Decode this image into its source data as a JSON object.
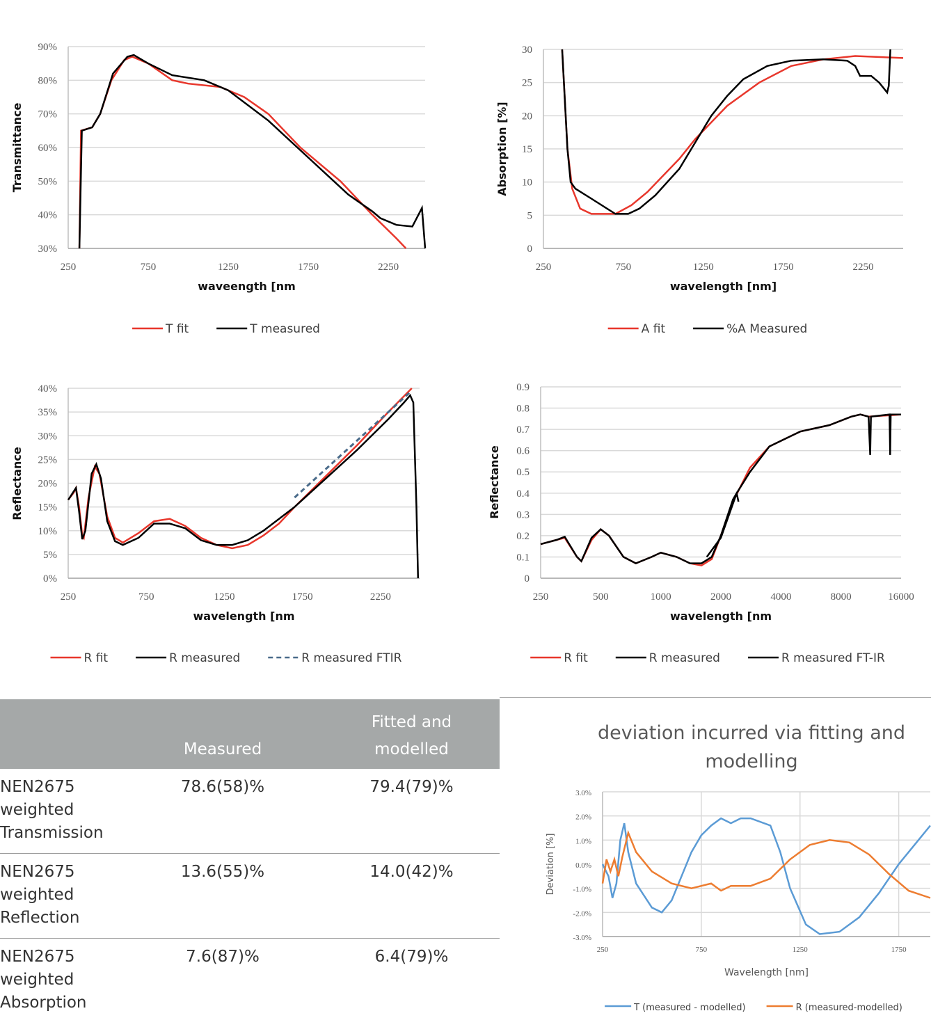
{
  "chart_data": [
    {
      "type": "line",
      "ylabel": "Transmittance",
      "xlabel": "waveength [nm",
      "xlim": [
        250,
        2480
      ],
      "xticks": [
        250,
        750,
        1250,
        1750,
        2250
      ],
      "ylim": [
        30,
        90
      ],
      "yticks": [
        {
          "value": 30,
          "label": "30%"
        },
        {
          "value": 40,
          "label": "40%"
        },
        {
          "value": 50,
          "label": "50%"
        },
        {
          "value": 60,
          "label": "60%"
        },
        {
          "value": 70,
          "label": "70%"
        },
        {
          "value": 80,
          "label": "80%"
        },
        {
          "value": 90,
          "label": "90%"
        }
      ],
      "grid": "y",
      "legend": "bottom",
      "series": [
        {
          "name": "T fit",
          "color": "#e8372c",
          "x": [
            320,
            330,
            400,
            450,
            520,
            600,
            650,
            750,
            900,
            1000,
            1200,
            1350,
            1500,
            1700,
            1950,
            2150,
            2300,
            2360
          ],
          "values": [
            30,
            65,
            66,
            70,
            80,
            86,
            87,
            85,
            80,
            79,
            78,
            75,
            70,
            60,
            50,
            40,
            33,
            30
          ]
        },
        {
          "name": "T measured",
          "color": "#000000",
          "x": [
            320,
            335,
            400,
            450,
            530,
            620,
            660,
            750,
            900,
            1100,
            1250,
            1500,
            1750,
            2000,
            2150,
            2200,
            2300,
            2400,
            2460,
            2480
          ],
          "values": [
            30,
            65,
            66,
            70,
            82,
            87,
            87.5,
            85,
            81.5,
            80,
            77,
            68,
            57,
            46,
            41,
            39,
            37,
            36.5,
            42,
            30
          ]
        }
      ]
    },
    {
      "type": "line",
      "ylabel": "Absorption [%]",
      "xlabel": "wavelength [nm]",
      "xlim": [
        250,
        2500
      ],
      "xticks": [
        250,
        750,
        1250,
        1750,
        2250
      ],
      "ylim": [
        0,
        30
      ],
      "yticks": [
        0,
        5,
        10,
        15,
        20,
        25,
        30
      ],
      "grid": "y",
      "legend": "bottom",
      "series": [
        {
          "name": "A fit",
          "color": "#e8372c",
          "x": [
            367,
            400,
            430,
            480,
            550,
            700,
            800,
            900,
            1000,
            1100,
            1200,
            1400,
            1600,
            1800,
            2000,
            2200,
            2500
          ],
          "values": [
            30,
            15,
            9,
            6,
            5.2,
            5.2,
            6.5,
            8.5,
            11,
            13.5,
            16.5,
            21.5,
            25,
            27.5,
            28.5,
            29,
            28.7
          ]
        },
        {
          "name": "%A Measured",
          "color": "#000000",
          "x": [
            367,
            400,
            420,
            450,
            550,
            700,
            780,
            850,
            950,
            1100,
            1200,
            1300,
            1400,
            1500,
            1650,
            1800,
            2000,
            2150,
            2200,
            2230,
            2300,
            2350,
            2400,
            2410,
            2420
          ],
          "values": [
            30,
            15,
            10,
            9,
            7.5,
            5.2,
            5.2,
            6,
            8,
            12,
            16,
            20,
            23,
            25.5,
            27.5,
            28.3,
            28.5,
            28.3,
            27.5,
            26,
            26,
            25,
            23.5,
            24.5,
            30
          ]
        }
      ]
    },
    {
      "type": "line",
      "ylabel": "Reflectance",
      "xlabel": "wavelength [nm",
      "xlim": [
        250,
        2500
      ],
      "xticks": [
        250,
        750,
        1250,
        1750,
        2250
      ],
      "ylim": [
        0,
        40
      ],
      "yticks": [
        {
          "value": 0,
          "label": "0%"
        },
        {
          "value": 5,
          "label": "5%"
        },
        {
          "value": 10,
          "label": "10%"
        },
        {
          "value": 15,
          "label": "15%"
        },
        {
          "value": 20,
          "label": "20%"
        },
        {
          "value": 25,
          "label": "25%"
        },
        {
          "value": 30,
          "label": "30%"
        },
        {
          "value": 35,
          "label": "35%"
        },
        {
          "value": 40,
          "label": "40%"
        }
      ],
      "grid": "y",
      "legend": "bottom",
      "series": [
        {
          "name": "R fit",
          "color": "#e8372c",
          "style": "solid",
          "x": [
            250,
            285,
            300,
            320,
            340,
            350,
            380,
            420,
            450,
            500,
            550,
            600,
            700,
            800,
            900,
            1000,
            1100,
            1200,
            1300,
            1400,
            1500,
            1600,
            1700,
            1900,
            2100,
            2300,
            2450
          ],
          "values": [
            16.5,
            18,
            19,
            15,
            9,
            8.5,
            17,
            23.5,
            22,
            13,
            8.5,
            7.5,
            9.5,
            12,
            12.5,
            11,
            8.5,
            7,
            6.3,
            7,
            9,
            11.5,
            15,
            21.5,
            28,
            35,
            40
          ]
        },
        {
          "name": "R measured",
          "color": "#000000",
          "style": "solid",
          "x": [
            250,
            300,
            320,
            340,
            360,
            400,
            430,
            460,
            500,
            550,
            600,
            700,
            800,
            900,
            1000,
            1100,
            1200,
            1300,
            1400,
            1500,
            1600,
            1700,
            1900,
            2100,
            2300,
            2400,
            2440,
            2460,
            2480,
            2490
          ],
          "values": [
            16.5,
            19,
            14,
            8.2,
            10,
            22,
            24,
            21,
            12,
            7.8,
            7,
            8.5,
            11.5,
            11.5,
            10.5,
            8,
            7,
            7,
            8,
            10,
            12.5,
            15,
            21,
            27,
            33.5,
            37,
            38.5,
            37,
            15,
            0
          ]
        },
        {
          "name": "R measured FTIR",
          "color": "#4a6b8a",
          "style": "dashed",
          "x": [
            1700,
            2000,
            2200,
            2450
          ],
          "values": [
            17,
            26,
            32,
            39.5
          ]
        }
      ]
    },
    {
      "type": "line",
      "ylabel": "Reflectance",
      "xlabel": "wavelength [nm",
      "xscale": "log",
      "xlim": [
        250,
        16000
      ],
      "xticks": [
        250,
        500,
        1000,
        2000,
        4000,
        8000,
        16000
      ],
      "ylim": [
        0,
        0.9
      ],
      "yticks": [
        0,
        0.1,
        0.2,
        0.3,
        0.4,
        0.5,
        0.6,
        0.7,
        0.8,
        0.9
      ],
      "grid": "y",
      "legend": "bottom",
      "series": [
        {
          "name": "R fit",
          "color": "#e8372c",
          "style": "solid",
          "x": [
            250,
            300,
            330,
            380,
            400,
            450,
            500,
            550,
            650,
            750,
            900,
            1000,
            1200,
            1400,
            1600,
            1800,
            2000,
            2300,
            2800,
            3500,
            5000,
            7000,
            9000,
            10000,
            11000,
            16000
          ],
          "values": [
            0.16,
            0.18,
            0.19,
            0.1,
            0.08,
            0.18,
            0.23,
            0.2,
            0.1,
            0.07,
            0.1,
            0.12,
            0.1,
            0.07,
            0.06,
            0.09,
            0.2,
            0.36,
            0.52,
            0.62,
            0.69,
            0.72,
            0.76,
            0.77,
            0.76,
            0.77
          ]
        },
        {
          "name": "R measured",
          "color": "#000000",
          "style": "solid",
          "x": [
            250,
            300,
            330,
            380,
            400,
            450,
            500,
            550,
            650,
            750,
            900,
            1000,
            1200,
            1400,
            1600,
            1800,
            2000,
            2300,
            2400,
            2450
          ],
          "values": [
            0.16,
            0.18,
            0.195,
            0.1,
            0.08,
            0.19,
            0.23,
            0.2,
            0.1,
            0.07,
            0.1,
            0.12,
            0.1,
            0.07,
            0.07,
            0.1,
            0.2,
            0.37,
            0.4,
            0.36
          ]
        },
        {
          "name": "R measured FT-IR",
          "color": "#000000",
          "style": "solid",
          "x": [
            1700,
            2000,
            2400,
            2800,
            3500,
            5000,
            7000,
            9000,
            10000,
            11000,
            11200,
            11300,
            14000,
            14100,
            14200,
            16000
          ],
          "values": [
            0.1,
            0.19,
            0.4,
            0.5,
            0.62,
            0.69,
            0.72,
            0.76,
            0.77,
            0.76,
            0.58,
            0.76,
            0.77,
            0.58,
            0.77,
            0.77
          ]
        }
      ]
    },
    {
      "type": "line",
      "title": "deviation incurred via fitting and modelling",
      "ylabel": "Deviation [%]",
      "xlabel": "Wavelength [nm]",
      "xlim": [
        250,
        1910
      ],
      "xticks": [
        250,
        750,
        1250,
        1750
      ],
      "ylim": [
        -3,
        3
      ],
      "yticks": [
        {
          "value": -3,
          "label": "-3.0%"
        },
        {
          "value": -2,
          "label": "-2.0%"
        },
        {
          "value": -1,
          "label": "-1.0%"
        },
        {
          "value": 0,
          "label": "0.0%"
        },
        {
          "value": 1,
          "label": "1.0%"
        },
        {
          "value": 2,
          "label": "2.0%"
        },
        {
          "value": 3,
          "label": "3.0%"
        }
      ],
      "grid": "both",
      "legend": "bottom",
      "series": [
        {
          "name": "T (measured - modelled)",
          "color": "#5b9bd5",
          "x": [
            250,
            280,
            300,
            320,
            340,
            360,
            380,
            420,
            500,
            550,
            600,
            650,
            700,
            750,
            800,
            850,
            900,
            950,
            1000,
            1100,
            1150,
            1200,
            1280,
            1350,
            1450,
            1550,
            1650,
            1750,
            1850,
            1910
          ],
          "values": [
            0,
            -0.5,
            -1.4,
            -0.8,
            1,
            1.7,
            0.5,
            -0.8,
            -1.8,
            -2,
            -1.5,
            -0.5,
            0.5,
            1.2,
            1.6,
            1.9,
            1.7,
            1.9,
            1.9,
            1.6,
            0.5,
            -1,
            -2.5,
            -2.9,
            -2.8,
            -2.2,
            -1.2,
            0,
            1,
            1.6
          ]
        },
        {
          "name": "R (measured-modelled)",
          "color": "#ed7d31",
          "x": [
            250,
            270,
            290,
            310,
            330,
            350,
            380,
            420,
            500,
            600,
            700,
            800,
            850,
            900,
            1000,
            1100,
            1200,
            1300,
            1400,
            1500,
            1600,
            1700,
            1800,
            1910
          ],
          "values": [
            -0.8,
            0.2,
            -0.3,
            0.2,
            -0.5,
            0.3,
            1.3,
            0.5,
            -0.3,
            -0.8,
            -1,
            -0.8,
            -1.1,
            -0.9,
            -0.9,
            -0.6,
            0.2,
            0.8,
            1,
            0.9,
            0.4,
            -0.4,
            -1.1,
            -1.4
          ]
        }
      ]
    }
  ],
  "table": {
    "header": {
      "measured": "Measured",
      "fitted": "Fitted and modelled"
    },
    "rows": [
      [
        "NEN2675 weighted Transmission",
        "78.6(58)%",
        "79.4(79)%"
      ],
      [
        "NEN2675 weighted Reflection",
        "13.6(55)%",
        "14.0(42)%"
      ],
      [
        "NEN2675 weighted Absorption",
        "7.6(87)%",
        "6.4(79)%"
      ]
    ]
  }
}
